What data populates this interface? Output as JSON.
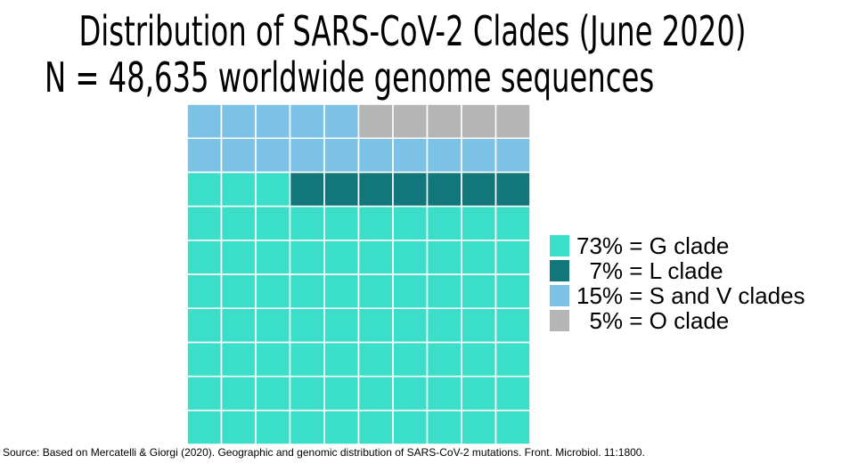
{
  "chart_data": {
    "type": "waffle",
    "title": "Distribution of SARS-CoV-2 Clades (June 2020)",
    "subtitle": "N = 48,635 worldwide genome sequences",
    "grid": {
      "rows": 10,
      "cols": 10
    },
    "series": [
      {
        "name": "G clade",
        "value": 73,
        "color": "#3bdec8",
        "label": "73% = G clade"
      },
      {
        "name": "L clade",
        "value": 7,
        "color": "#12777a",
        "label": "  7% = L clade"
      },
      {
        "name": "S and V clades",
        "value": 15,
        "color": "#7cc2e6",
        "label": "15% = S and V clades"
      },
      {
        "name": "O clade",
        "value": 5,
        "color": "#b5b5b5",
        "label": "  5% = O clade"
      }
    ],
    "legend_position": "right",
    "caption": "Source: Based on Mercatelli & Giorgi (2020). Geographic and genomic distribution of SARS-CoV-2 mutations. Front. Microbiol. 11:1800."
  }
}
